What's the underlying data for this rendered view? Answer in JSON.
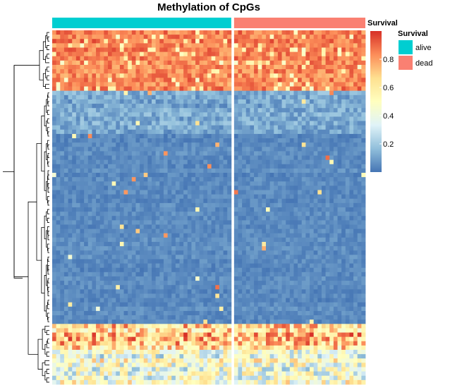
{
  "chart_data": {
    "type": "heatmap",
    "title": "Methylation of  CpGs",
    "annotation": {
      "name": "Survival",
      "groups": [
        {
          "label": "alive",
          "color": "#00CED1",
          "columns": 45
        },
        {
          "label": "dead",
          "color": "#FA8072",
          "columns": 33
        }
      ]
    },
    "value_range": [
      0,
      1
    ],
    "colorbar": {
      "ticks": [
        0.2,
        0.4,
        0.6,
        0.8
      ],
      "tick_labels": [
        "0.2",
        "0.4",
        "0.6",
        "0.8"
      ],
      "colors": [
        "#4575B4",
        "#91BFDB",
        "#E0F3F8",
        "#FFFFBF",
        "#FEE090",
        "#FC8D59",
        "#D73027"
      ]
    },
    "row_blocks": [
      {
        "rows": 14,
        "mean": 0.85,
        "spread": 0.1
      },
      {
        "rows": 10,
        "mean": 0.12,
        "spread": 0.08
      },
      {
        "rows": 44,
        "mean": 0.05,
        "spread": 0.04
      },
      {
        "rows": 6,
        "mean": 0.7,
        "spread": 0.25
      },
      {
        "rows": 8,
        "mean": 0.45,
        "spread": 0.25
      }
    ],
    "row_dendrogram": true,
    "column_split_gap": true,
    "legend": {
      "title": "Survival",
      "position": "right"
    }
  }
}
